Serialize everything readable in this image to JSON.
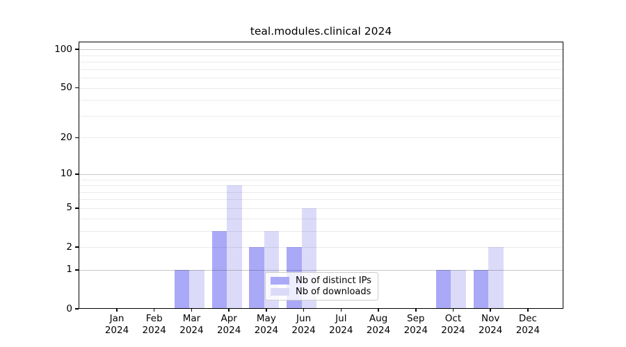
{
  "title": "teal.modules.clinical 2024",
  "chart_data": {
    "type": "bar",
    "title": "teal.modules.clinical 2024",
    "categories": [
      "Jan",
      "Feb",
      "Mar",
      "Apr",
      "May",
      "Jun",
      "Jul",
      "Aug",
      "Sep",
      "Oct",
      "Nov",
      "Dec"
    ],
    "x_year_label": "2024",
    "series": [
      {
        "name": "Nb of distinct IPs",
        "color": "#a9a9f7",
        "values": [
          0,
          0,
          1,
          3,
          2,
          2,
          0,
          0,
          0,
          1,
          1,
          0
        ]
      },
      {
        "name": "Nb of downloads",
        "color": "#dbdbf9",
        "values": [
          0,
          0,
          1,
          8,
          3,
          5,
          0,
          0,
          0,
          1,
          2,
          0
        ]
      }
    ],
    "y_axis": {
      "scale": "log1p",
      "tick_labels": [
        0,
        1,
        2,
        5,
        10,
        20,
        50,
        100
      ],
      "major_gridlines": [
        1,
        10,
        100
      ],
      "minor_gridlines": [
        2,
        3,
        4,
        5,
        6,
        7,
        8,
        9,
        20,
        30,
        40,
        50,
        60,
        70,
        80,
        90
      ],
      "ylim": [
        0,
        114
      ],
      "grid": true
    },
    "legend": {
      "position": "bottom-center-inside",
      "entries": [
        "Nb of distinct IPs",
        "Nb of downloads"
      ]
    }
  },
  "colors": {
    "background": "#ffffff",
    "spine": "#000000",
    "major_grid": "#c7c7c7",
    "minor_grid": "#ececec",
    "legend_border": "#cccccc",
    "text": "#000000"
  }
}
